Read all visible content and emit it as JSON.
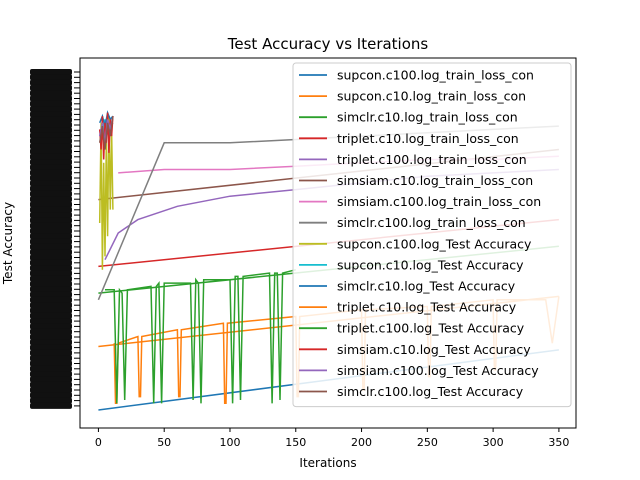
{
  "chart_data": {
    "type": "line",
    "title": "Test Accuracy vs Iterations",
    "xlabel": "Iterations",
    "ylabel": "Test Accuracy",
    "xlim": [
      -14,
      363
    ],
    "xticks": [
      0,
      50,
      100,
      150,
      200,
      250,
      300,
      350
    ],
    "ylim": [
      0,
      1
    ],
    "grid": false,
    "legend_position": "top-right",
    "series": [
      {
        "name": "supcon.c100.log_train_loss_con",
        "color": "#1f77b4",
        "x": [
          0,
          350
        ],
        "y": [
          0.0,
          0.18
        ]
      },
      {
        "name": "supcon.c10.log_train_loss_con",
        "color": "#ff7f0e",
        "x": [
          0,
          350
        ],
        "y": [
          0.19,
          0.34
        ]
      },
      {
        "name": "simclr.c10.log_train_loss_con",
        "color": "#2ca02c",
        "x": [
          0,
          350
        ],
        "y": [
          0.35,
          0.49
        ]
      },
      {
        "name": "triplet.c10.log_train_loss_con",
        "color": "#d62728",
        "x": [
          0,
          350
        ],
        "y": [
          0.43,
          0.57
        ]
      },
      {
        "name": "triplet.c100.log_train_loss_con",
        "color": "#9467bd",
        "x": [
          5,
          15,
          30,
          60,
          100,
          150,
          200,
          250,
          300,
          350
        ],
        "y": [
          0.45,
          0.53,
          0.57,
          0.61,
          0.64,
          0.66,
          0.68,
          0.7,
          0.71,
          0.72
        ]
      },
      {
        "name": "simsiam.c10.log_train_loss_con",
        "color": "#8c564b",
        "x": [
          0,
          350
        ],
        "y": [
          0.63,
          0.78
        ]
      },
      {
        "name": "simsiam.c100.log_train_loss_con",
        "color": "#e377c2",
        "x": [
          15,
          50,
          100,
          150,
          200,
          250,
          300,
          350
        ],
        "y": [
          0.71,
          0.72,
          0.72,
          0.73,
          0.74,
          0.75,
          0.75,
          0.76
        ]
      },
      {
        "name": "simclr.c100.log_train_loss_con",
        "color": "#7f7f7f",
        "x": [
          0,
          50,
          100,
          150,
          200,
          250,
          300,
          350
        ],
        "y": [
          0.33,
          0.8,
          0.8,
          0.81,
          0.82,
          0.83,
          0.84,
          0.85
        ]
      },
      {
        "name": "supcon.c100.log_Test Accuracy",
        "color": "#bcbd22",
        "x": [
          1,
          2,
          3,
          4,
          5,
          6,
          7,
          8,
          9,
          10,
          11
        ],
        "y": [
          0.56,
          0.86,
          0.42,
          0.74,
          0.46,
          0.8,
          0.52,
          0.88,
          0.6,
          0.84,
          0.6
        ]
      },
      {
        "name": "supcon.c10.log_Test Accuracy",
        "color": "#17becf",
        "x": [
          1,
          3,
          5,
          7,
          9,
          11
        ],
        "y": [
          0.84,
          0.81,
          0.87,
          0.83,
          0.85,
          0.86
        ]
      },
      {
        "name": "simclr.c10.log_Test Accuracy",
        "color": "#1f77b4",
        "x": [
          1,
          3,
          5,
          7,
          9,
          11
        ],
        "y": [
          0.86,
          0.88,
          0.85,
          0.89,
          0.87,
          0.88
        ]
      },
      {
        "name": "triplet.c10.log_Test Accuracy",
        "color": "#ff7f0e",
        "x": [
          12,
          13,
          14,
          15,
          30,
          31,
          32,
          33,
          60,
          61,
          62,
          63,
          95,
          96,
          97,
          98,
          150,
          151,
          152,
          153,
          200,
          201,
          202,
          203,
          250,
          251,
          252,
          253,
          300,
          301,
          302,
          303,
          340,
          345,
          350
        ],
        "y": [
          0.2,
          0.02,
          0.02,
          0.2,
          0.22,
          0.04,
          0.04,
          0.22,
          0.24,
          0.04,
          0.04,
          0.24,
          0.26,
          0.02,
          0.02,
          0.26,
          0.28,
          0.04,
          0.04,
          0.28,
          0.3,
          0.06,
          0.06,
          0.3,
          0.31,
          0.1,
          0.1,
          0.31,
          0.33,
          0.12,
          0.12,
          0.33,
          0.33,
          0.2,
          0.34
        ]
      },
      {
        "name": "triplet.c100.log_Test Accuracy",
        "color": "#2ca02c",
        "x": [
          5,
          12,
          14,
          16,
          18,
          20,
          22,
          40,
          42,
          44,
          46,
          48,
          50,
          70,
          72,
          74,
          76,
          78,
          80,
          100,
          102,
          104,
          106,
          108,
          110,
          130,
          132,
          134,
          136,
          138,
          140,
          150
        ],
        "y": [
          0.36,
          0.36,
          0.02,
          0.36,
          0.35,
          0.03,
          0.36,
          0.37,
          0.02,
          0.37,
          0.38,
          0.02,
          0.38,
          0.38,
          0.03,
          0.39,
          0.38,
          0.02,
          0.39,
          0.39,
          0.02,
          0.4,
          0.4,
          0.03,
          0.4,
          0.41,
          0.02,
          0.41,
          0.41,
          0.03,
          0.41,
          0.42
        ]
      },
      {
        "name": "simsiam.c10.log_Test Accuracy",
        "color": "#d62728",
        "x": [
          1,
          2,
          3,
          4,
          5,
          6,
          7,
          8,
          9,
          10,
          11
        ],
        "y": [
          0.84,
          0.78,
          0.88,
          0.75,
          0.86,
          0.8,
          0.89,
          0.77,
          0.87,
          0.82,
          0.88
        ]
      },
      {
        "name": "simsiam.c100.log_Test Accuracy",
        "color": "#9467bd",
        "x": [
          1,
          3,
          5,
          7,
          9,
          11
        ],
        "y": [
          0.82,
          0.86,
          0.8,
          0.87,
          0.84,
          0.88
        ]
      },
      {
        "name": "simclr.c100.log_Test Accuracy",
        "color": "#8c564b",
        "x": [
          1,
          3,
          5,
          7,
          9,
          11
        ],
        "y": [
          0.8,
          0.85,
          0.78,
          0.86,
          0.82,
          0.88
        ]
      }
    ]
  }
}
